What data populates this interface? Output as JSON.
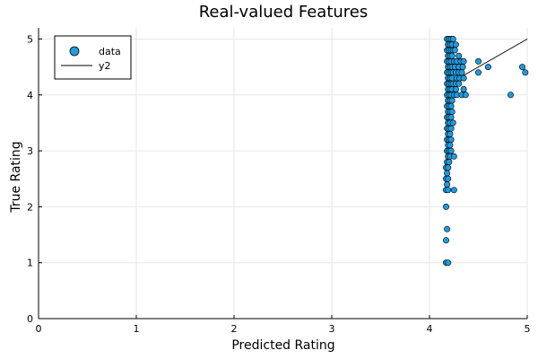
{
  "chart_data": {
    "type": "scatter",
    "title": "Real-valued Features",
    "xlabel": "Predicted Rating",
    "ylabel": "True Rating",
    "xlim": [
      0,
      5
    ],
    "ylim": [
      0,
      5.2
    ],
    "xticks": [
      "0",
      "1",
      "2",
      "3",
      "4",
      "5"
    ],
    "yticks": [
      "0",
      "1",
      "2",
      "3",
      "4",
      "5"
    ],
    "grid": true,
    "legend_position": "top-left",
    "colors": {
      "marker": "#1f9bde",
      "marker_edge": "#000000",
      "line": "#000000",
      "grid": "#e6e6e6"
    },
    "series": [
      {
        "name": "data",
        "kind": "scatter",
        "points": [
          [
            4.18,
            5.0
          ],
          [
            4.2,
            5.0
          ],
          [
            4.22,
            5.0
          ],
          [
            4.24,
            5.0
          ],
          [
            4.19,
            4.9
          ],
          [
            4.21,
            4.9
          ],
          [
            4.23,
            4.9
          ],
          [
            4.18,
            4.8
          ],
          [
            4.2,
            4.8
          ],
          [
            4.22,
            4.8
          ],
          [
            4.24,
            4.8
          ],
          [
            4.19,
            4.7
          ],
          [
            4.21,
            4.7
          ],
          [
            4.23,
            4.7
          ],
          [
            4.18,
            4.6
          ],
          [
            4.2,
            4.6
          ],
          [
            4.22,
            4.6
          ],
          [
            4.25,
            4.6
          ],
          [
            4.19,
            4.5
          ],
          [
            4.21,
            4.5
          ],
          [
            4.23,
            4.5
          ],
          [
            4.26,
            4.5
          ],
          [
            4.18,
            4.4
          ],
          [
            4.2,
            4.4
          ],
          [
            4.22,
            4.4
          ],
          [
            4.24,
            4.4
          ],
          [
            4.19,
            4.3
          ],
          [
            4.21,
            4.3
          ],
          [
            4.23,
            4.3
          ],
          [
            4.18,
            4.2
          ],
          [
            4.2,
            4.2
          ],
          [
            4.22,
            4.2
          ],
          [
            4.24,
            4.2
          ],
          [
            4.19,
            4.1
          ],
          [
            4.21,
            4.1
          ],
          [
            4.23,
            4.1
          ],
          [
            4.18,
            4.0
          ],
          [
            4.2,
            4.0
          ],
          [
            4.22,
            4.0
          ],
          [
            4.25,
            4.0
          ],
          [
            4.19,
            3.9
          ],
          [
            4.21,
            3.9
          ],
          [
            4.23,
            3.9
          ],
          [
            4.18,
            3.8
          ],
          [
            4.2,
            3.8
          ],
          [
            4.22,
            3.8
          ],
          [
            4.19,
            3.7
          ],
          [
            4.21,
            3.7
          ],
          [
            4.23,
            3.7
          ],
          [
            4.18,
            3.6
          ],
          [
            4.2,
            3.6
          ],
          [
            4.22,
            3.6
          ],
          [
            4.19,
            3.5
          ],
          [
            4.21,
            3.5
          ],
          [
            4.24,
            3.5
          ],
          [
            4.18,
            3.4
          ],
          [
            4.2,
            3.4
          ],
          [
            4.22,
            3.4
          ],
          [
            4.19,
            3.3
          ],
          [
            4.21,
            3.3
          ],
          [
            4.18,
            3.2
          ],
          [
            4.2,
            3.2
          ],
          [
            4.22,
            3.2
          ],
          [
            4.19,
            3.1
          ],
          [
            4.21,
            3.1
          ],
          [
            4.18,
            3.0
          ],
          [
            4.2,
            3.0
          ],
          [
            4.22,
            3.0
          ],
          [
            4.19,
            2.9
          ],
          [
            4.21,
            2.9
          ],
          [
            4.25,
            2.9
          ],
          [
            4.18,
            2.8
          ],
          [
            4.2,
            2.8
          ],
          [
            4.17,
            2.7
          ],
          [
            4.19,
            2.7
          ],
          [
            4.18,
            2.6
          ],
          [
            4.17,
            2.5
          ],
          [
            4.19,
            2.5
          ],
          [
            4.18,
            2.4
          ],
          [
            4.17,
            2.3
          ],
          [
            4.19,
            2.3
          ],
          [
            4.25,
            2.3
          ],
          [
            4.17,
            2.0
          ],
          [
            4.18,
            1.6
          ],
          [
            4.17,
            1.4
          ],
          [
            4.17,
            1.0
          ],
          [
            4.19,
            1.0
          ],
          [
            4.27,
            4.9
          ],
          [
            4.26,
            4.8
          ],
          [
            4.28,
            4.6
          ],
          [
            4.3,
            4.7
          ],
          [
            4.32,
            4.6
          ],
          [
            4.35,
            4.6
          ],
          [
            4.3,
            4.5
          ],
          [
            4.34,
            4.5
          ],
          [
            4.27,
            4.4
          ],
          [
            4.3,
            4.4
          ],
          [
            4.33,
            4.4
          ],
          [
            4.28,
            4.3
          ],
          [
            4.31,
            4.3
          ],
          [
            4.35,
            4.3
          ],
          [
            4.27,
            4.2
          ],
          [
            4.3,
            4.2
          ],
          [
            4.27,
            4.1
          ],
          [
            4.35,
            4.1
          ],
          [
            4.28,
            4.0
          ],
          [
            4.33,
            4.0
          ],
          [
            4.37,
            4.0
          ],
          [
            4.5,
            4.6
          ],
          [
            4.6,
            4.5
          ],
          [
            4.5,
            4.4
          ],
          [
            4.83,
            4.0
          ],
          [
            4.95,
            4.5
          ],
          [
            4.98,
            4.4
          ]
        ]
      },
      {
        "name": "y2",
        "kind": "line",
        "points": [
          [
            4.35,
            4.35
          ],
          [
            5.0,
            5.0
          ]
        ]
      }
    ]
  }
}
